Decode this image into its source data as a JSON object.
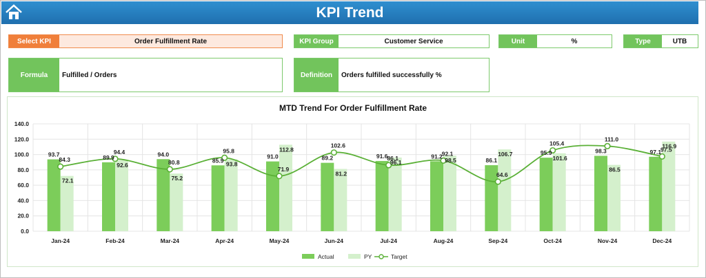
{
  "header": {
    "title": "KPI Trend",
    "home_icon": "home-icon"
  },
  "selectors": {
    "select_kpi_label": "Select KPI",
    "select_kpi_value": "Order Fulfillment Rate",
    "kpi_group_label": "KPI Group",
    "kpi_group_value": "Customer Service",
    "unit_label": "Unit",
    "unit_value": "%",
    "type_label": "Type",
    "type_value": "UTB"
  },
  "info": {
    "formula_label": "Formula",
    "formula_value": "Fulfilled / Orders",
    "definition_label": "Definition",
    "definition_value": "Orders fulfilled successfully %"
  },
  "colors": {
    "actual": "#7ccd5a",
    "py": "#d4f0cc",
    "target": "#5ab036",
    "header": "#2a85c6"
  },
  "chart_data": {
    "type": "bar",
    "title": "MTD Trend For Order Fulfillment Rate",
    "categories": [
      "Jan-24",
      "Feb-24",
      "Mar-24",
      "Apr-24",
      "May-24",
      "Jun-24",
      "Jul-24",
      "Aug-24",
      "Sep-24",
      "Oct-24",
      "Nov-24",
      "Dec-24"
    ],
    "series": [
      {
        "name": "Actual",
        "values": [
          93.7,
          89.9,
          94.0,
          85.9,
          91.0,
          89.2,
          91.6,
          91.2,
          86.1,
          95.9,
          98.3,
          97.1
        ]
      },
      {
        "name": "PY",
        "values": [
          72.1,
          92.6,
          75.2,
          93.8,
          112.8,
          81.2,
          96.1,
          98.5,
          106.7,
          101.6,
          86.5,
          116.9
        ]
      },
      {
        "name": "Target",
        "values": [
          84.3,
          94.4,
          80.8,
          95.8,
          71.9,
          102.6,
          86.1,
          92.1,
          64.6,
          105.4,
          111.0,
          97.5
        ]
      }
    ],
    "ylim": [
      0,
      140
    ],
    "yticks": [
      "0.0",
      "20.0",
      "40.0",
      "60.0",
      "80.0",
      "100.0",
      "120.0",
      "140.0"
    ],
    "grid": true,
    "legend": "bottom"
  }
}
